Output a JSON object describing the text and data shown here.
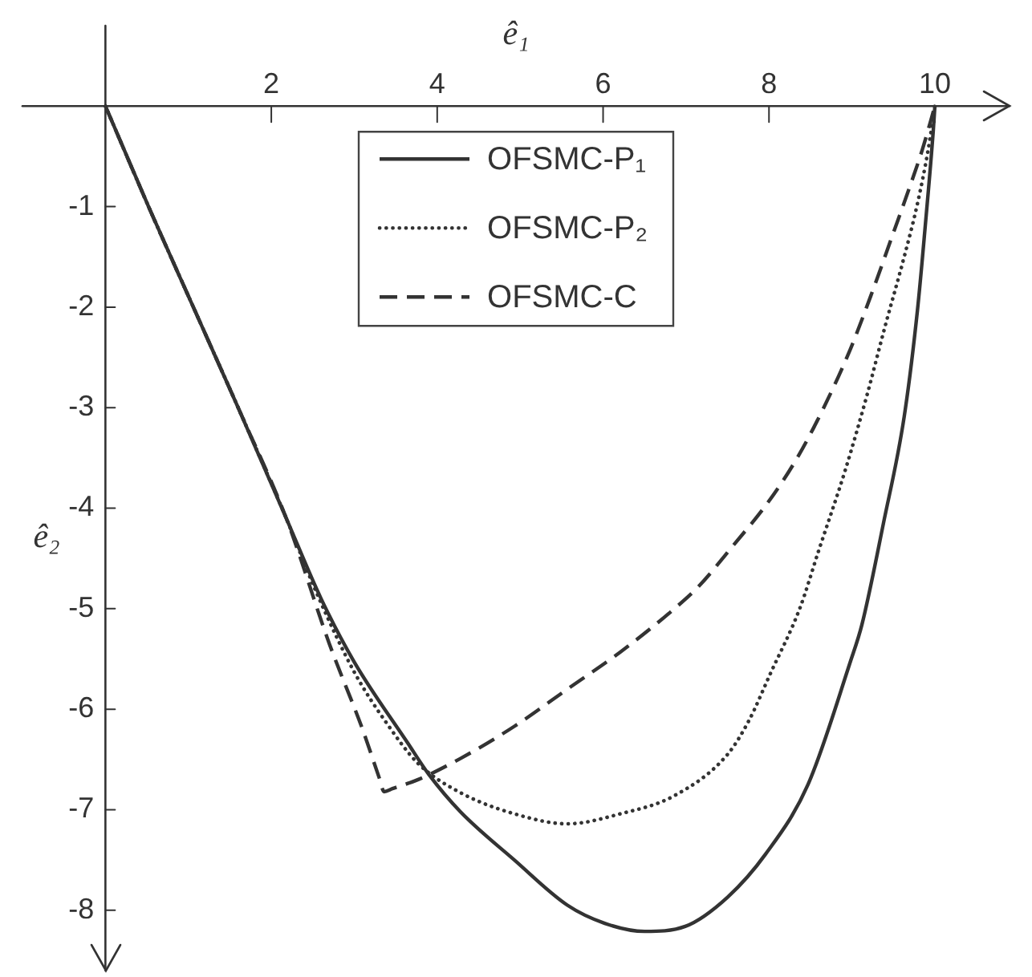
{
  "chart_data": {
    "type": "line",
    "xlabel": "ê₁",
    "ylabel": "ê₂",
    "xlim": [
      -1,
      10.9
    ],
    "ylim": [
      -8.6,
      0.8
    ],
    "xticks": [
      2,
      4,
      6,
      8,
      10
    ],
    "yticks": [
      -1,
      -2,
      -3,
      -4,
      -5,
      -6,
      -7,
      -8
    ],
    "legend": "top",
    "marker": "none",
    "series": [
      {
        "name": "OFSMC-P₁",
        "color": "#333333",
        "line_style": "solid",
        "x": [
          0,
          0.52,
          1.06,
          1.6,
          2.18,
          2.6,
          3.0,
          3.64,
          3.9,
          4.28,
          4.93,
          5.57,
          6.02,
          6.5,
          6.99,
          7.5,
          7.96,
          8.47,
          8.98,
          9.12,
          9.38,
          9.63,
          9.79,
          9.88,
          9.98,
          10
        ],
        "values": [
          0,
          -1,
          -2,
          -3,
          -4.1,
          -4.9,
          -5.53,
          -6.33,
          -6.65,
          -7.02,
          -7.5,
          -7.95,
          -8.13,
          -8.21,
          -8.16,
          -7.87,
          -7.44,
          -6.75,
          -5.53,
          -5.16,
          -4.15,
          -3.09,
          -2.03,
          -1.23,
          -0.25,
          0
        ]
      },
      {
        "name": "OFSMC-P₂",
        "color": "#333333",
        "line_style": "dotted",
        "x": [
          0,
          0.52,
          1.06,
          1.6,
          2.18,
          2.55,
          3.0,
          3.4,
          3.77,
          4.28,
          4.93,
          5.57,
          6.21,
          6.86,
          7.5,
          7.76,
          8.02,
          8.37,
          8.6,
          8.92,
          9.18,
          9.4,
          9.63,
          9.79,
          9.92,
          10
        ],
        "values": [
          0,
          -1,
          -2,
          -3,
          -4.1,
          -4.85,
          -5.63,
          -6.15,
          -6.54,
          -6.83,
          -7.04,
          -7.14,
          -7.04,
          -6.86,
          -6.45,
          -6.11,
          -5.64,
          -5,
          -4.42,
          -3.62,
          -2.88,
          -2.19,
          -1.5,
          -0.97,
          -0.43,
          0
        ]
      },
      {
        "name": "OFSMC-C",
        "color": "#333333",
        "line_style": "dashed",
        "x": [
          0,
          0.52,
          1.06,
          1.6,
          2.18,
          2.7,
          3.1,
          3.3,
          3.36,
          3.46,
          3.77,
          4.28,
          4.93,
          5.57,
          6.21,
          6.86,
          7.15,
          7.57,
          7.99,
          8.34,
          8.66,
          8.98,
          9.24,
          9.5,
          9.69,
          9.85,
          10
        ],
        "values": [
          0,
          -1,
          -2,
          -3,
          -4.1,
          -5.35,
          -6.2,
          -6.68,
          -6.82,
          -6.79,
          -6.7,
          -6.49,
          -6.17,
          -5.8,
          -5.43,
          -5,
          -4.78,
          -4.37,
          -3.94,
          -3.5,
          -3,
          -2.42,
          -1.86,
          -1.26,
          -0.82,
          -0.43,
          0
        ]
      }
    ]
  }
}
